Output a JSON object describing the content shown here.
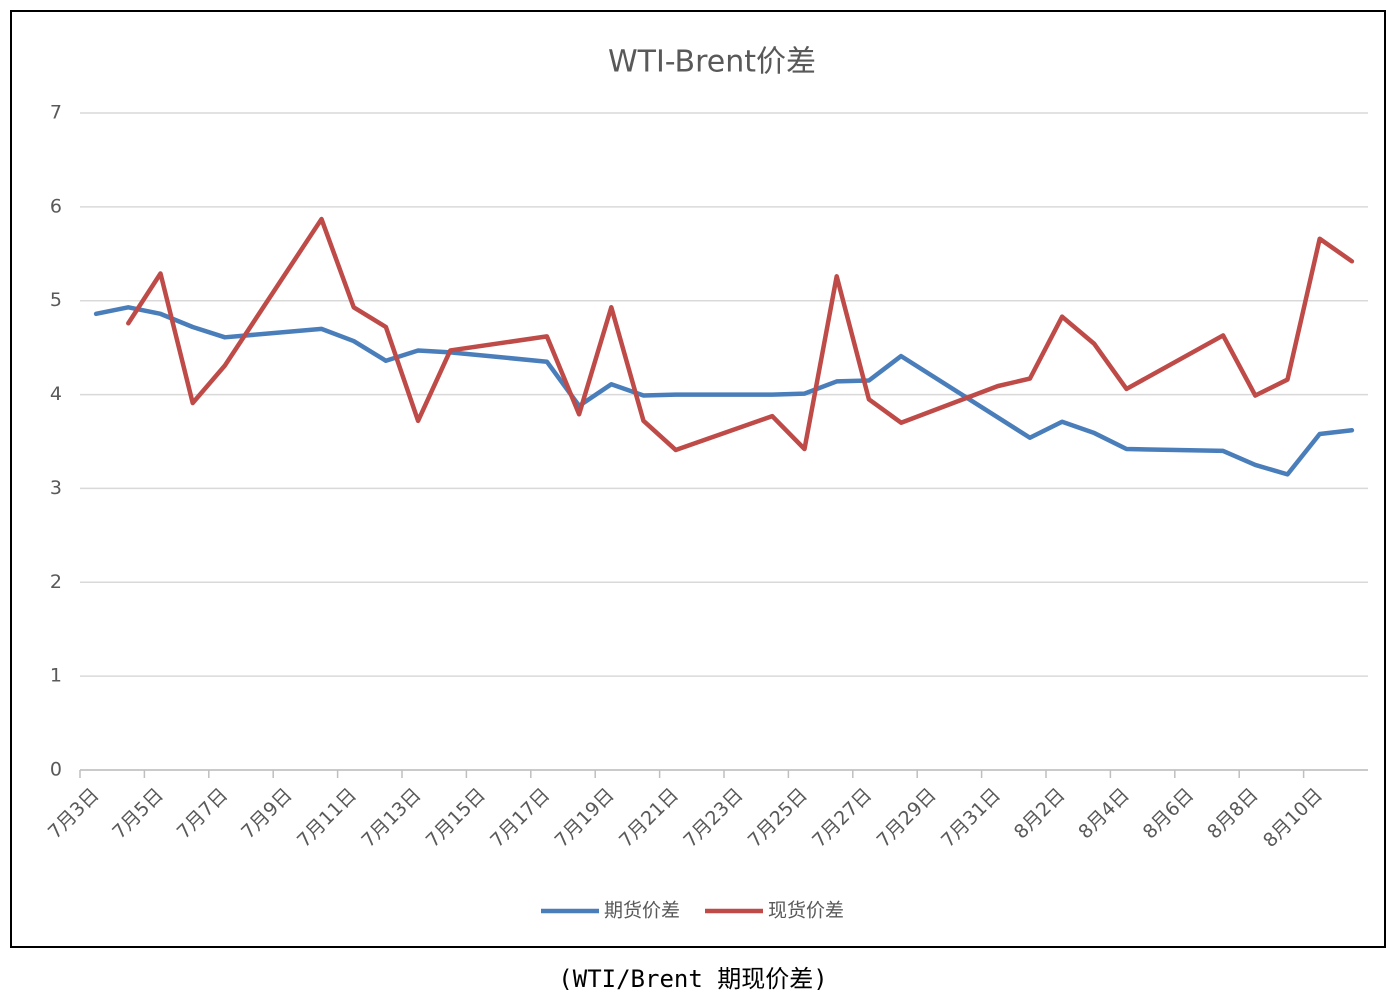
{
  "chart_data": {
    "type": "line",
    "title": "WTI-Brent价差",
    "caption": "(WTI/Brent 期现价差)",
    "categories": [
      "7月3日",
      null,
      "7月5日",
      null,
      "7月7日",
      null,
      "7月9日",
      null,
      "7月11日",
      null,
      "7月13日",
      null,
      "7月15日",
      null,
      "7月17日",
      null,
      "7月19日",
      null,
      "7月21日",
      null,
      "7月23日",
      null,
      "7月25日",
      null,
      "7月27日",
      null,
      "7月29日",
      null,
      "7月31日",
      null,
      "8月2日",
      null,
      "8月4日",
      null,
      "8月6日",
      null,
      "8月8日",
      null,
      "8月10日",
      null
    ],
    "series": [
      {
        "name": "期货价差",
        "color": "#4a7ebb",
        "values": [
          4.86,
          4.93,
          4.86,
          4.72,
          4.61,
          null,
          null,
          4.7,
          4.57,
          4.36,
          4.47,
          4.45,
          null,
          null,
          4.35,
          3.88,
          4.11,
          3.99,
          4.0,
          null,
          null,
          4.0,
          4.01,
          4.14,
          4.15,
          4.41,
          null,
          null,
          null,
          3.54,
          3.71,
          3.59,
          3.42,
          null,
          null,
          3.4,
          3.25,
          3.15,
          3.58,
          3.62
        ]
      },
      {
        "name": "现货价差",
        "color": "#be4b48",
        "values": [
          null,
          4.76,
          5.29,
          3.91,
          4.31,
          null,
          null,
          5.87,
          4.93,
          4.72,
          3.72,
          4.47,
          null,
          null,
          4.62,
          3.79,
          4.93,
          3.72,
          3.41,
          null,
          null,
          3.77,
          3.42,
          5.26,
          3.95,
          3.7,
          null,
          null,
          4.09,
          4.17,
          4.83,
          4.54,
          4.06,
          null,
          null,
          4.63,
          3.99,
          4.16,
          5.66,
          5.42
        ]
      }
    ],
    "connect_gaps": true,
    "ylim": [
      0,
      7
    ],
    "yticks": [
      0,
      1,
      2,
      3,
      4,
      5,
      6,
      7
    ],
    "grid": true,
    "legend": "bottom"
  }
}
